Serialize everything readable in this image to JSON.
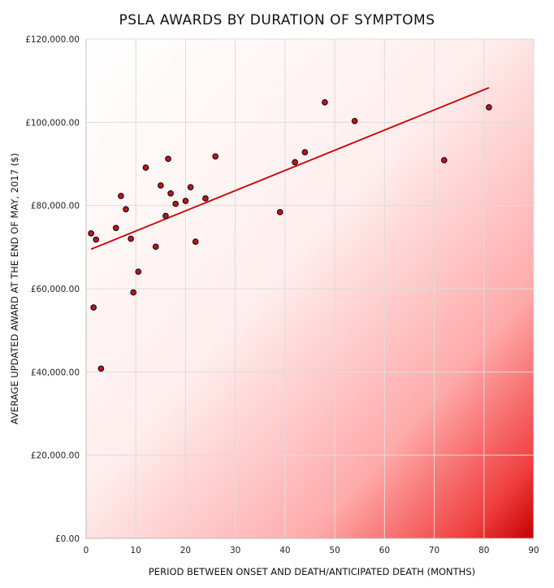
{
  "chart_data": {
    "type": "scatter",
    "title": "PSLA AWARDS BY DURATION OF SYMPTOMS",
    "xlabel": "PERIOD BETWEEN ONSET AND DEATH/ANTICIPATED DEATH (MONTHS)",
    "ylabel": "AVERAGE UPDATED AWARD AT THE END OF MAY, 2017 ($)",
    "xlim": [
      0,
      90
    ],
    "ylim": [
      0,
      120000
    ],
    "x_ticks": [
      0,
      10,
      20,
      30,
      40,
      50,
      60,
      70,
      80,
      90
    ],
    "x_tick_labels": [
      "0",
      "10",
      "20",
      "30",
      "40",
      "50",
      "60",
      "70",
      "80",
      "90"
    ],
    "y_ticks": [
      0,
      20000,
      40000,
      60000,
      80000,
      100000,
      120000
    ],
    "y_tick_labels": [
      "£0.00",
      "£20,000.00",
      "£40,000.00",
      "£60,000.00",
      "£80,000.00",
      "£100,000.00",
      "£120,000.00"
    ],
    "grid": true,
    "colors": {
      "point_fill": "#c0141e",
      "point_stroke": "#000000",
      "trendline": "#cc0000",
      "grid": "#dcdcdc",
      "gradient_light": "#ffffff",
      "gradient_mid": "#ffc8c8",
      "gradient_dark": "#c40000"
    },
    "series": [
      {
        "points": [
          {
            "x": 1.0,
            "y": 73300
          },
          {
            "x": 1.5,
            "y": 55500
          },
          {
            "x": 2.0,
            "y": 71800
          },
          {
            "x": 3.0,
            "y": 40800
          },
          {
            "x": 6.0,
            "y": 74600
          },
          {
            "x": 7.0,
            "y": 82300
          },
          {
            "x": 8.0,
            "y": 79100
          },
          {
            "x": 9.0,
            "y": 72000
          },
          {
            "x": 9.5,
            "y": 59100
          },
          {
            "x": 10.5,
            "y": 64100
          },
          {
            "x": 12.0,
            "y": 89100
          },
          {
            "x": 14.0,
            "y": 70100
          },
          {
            "x": 15.0,
            "y": 84800
          },
          {
            "x": 16.0,
            "y": 77500
          },
          {
            "x": 16.5,
            "y": 91200
          },
          {
            "x": 17.0,
            "y": 82900
          },
          {
            "x": 18.0,
            "y": 80400
          },
          {
            "x": 20.0,
            "y": 81100
          },
          {
            "x": 21.0,
            "y": 84400
          },
          {
            "x": 22.0,
            "y": 71300
          },
          {
            "x": 24.0,
            "y": 81700
          },
          {
            "x": 26.0,
            "y": 91800
          },
          {
            "x": 39.0,
            "y": 78400
          },
          {
            "x": 42.0,
            "y": 90400
          },
          {
            "x": 44.0,
            "y": 92800
          },
          {
            "x": 48.0,
            "y": 104800
          },
          {
            "x": 54.0,
            "y": 100300
          },
          {
            "x": 72.0,
            "y": 90900
          },
          {
            "x": 81.0,
            "y": 103600
          }
        ]
      }
    ],
    "trendline": {
      "x_start": 1,
      "y_start": 69500,
      "x_end": 81,
      "y_end": 108300
    }
  }
}
